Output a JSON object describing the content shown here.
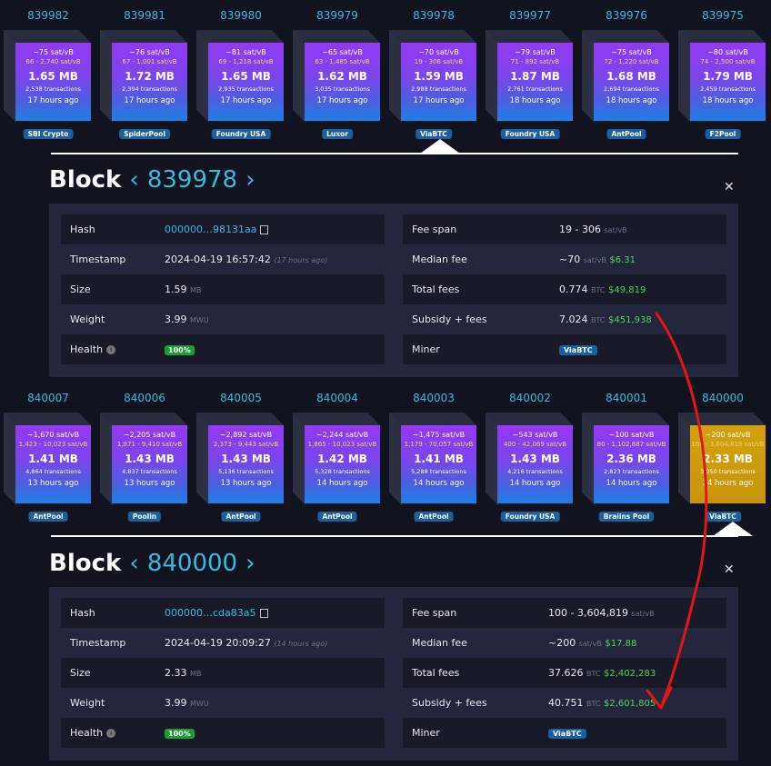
{
  "sections": [
    {
      "blocks": [
        {
          "height": "839982",
          "fee": "~75 sat/vB",
          "range": "66 - 2,740 sat/vB",
          "size": "1.65 MB",
          "tx": "2,538 transactions",
          "age": "17 hours ago",
          "pool": "SBI Crypto"
        },
        {
          "height": "839981",
          "fee": "~76 sat/vB",
          "range": "67 - 1,001 sat/vB",
          "size": "1.72 MB",
          "tx": "2,394 transactions",
          "age": "17 hours ago",
          "pool": "SpiderPool"
        },
        {
          "height": "839980",
          "fee": "~81 sat/vB",
          "range": "69 - 1,218 sat/vB",
          "size": "1.65 MB",
          "tx": "2,935 transactions",
          "age": "17 hours ago",
          "pool": "Foundry USA"
        },
        {
          "height": "839979",
          "fee": "~65 sat/vB",
          "range": "63 - 1,485 sat/vB",
          "size": "1.62 MB",
          "tx": "3,035 transactions",
          "age": "17 hours ago",
          "pool": "Luxor"
        },
        {
          "height": "839978",
          "fee": "~70 sat/vB",
          "range": "19 - 306 sat/vB",
          "size": "1.59 MB",
          "tx": "2,988 transactions",
          "age": "17 hours ago",
          "pool": "ViaBTC"
        },
        {
          "height": "839977",
          "fee": "~79 sat/vB",
          "range": "71 - 892 sat/vB",
          "size": "1.87 MB",
          "tx": "2,761 transactions",
          "age": "18 hours ago",
          "pool": "Foundry USA"
        },
        {
          "height": "839976",
          "fee": "~75 sat/vB",
          "range": "72 - 1,220 sat/vB",
          "size": "1.68 MB",
          "tx": "2,694 transactions",
          "age": "18 hours ago",
          "pool": "AntPool"
        },
        {
          "height": "839975",
          "fee": "~80 sat/vB",
          "range": "74 - 2,500 sat/vB",
          "size": "1.79 MB",
          "tx": "2,459 transactions",
          "age": "18 hours ago",
          "pool": "F2Pool"
        }
      ],
      "detail": {
        "title": "Block",
        "arrow_left": "‹",
        "arrow_right": "›",
        "height": "839978",
        "close": "✕",
        "hash_label": "Hash",
        "hash": "000000…98131aa",
        "timestamp_label": "Timestamp",
        "timestamp": "2024-04-19 16:57:42",
        "timestamp_ago": "(17 hours ago)",
        "size_label": "Size",
        "size": "1.59",
        "size_unit": "MB",
        "weight_label": "Weight",
        "weight": "3.99",
        "weight_unit": "MWU",
        "health_label": "Health",
        "health": "100%",
        "feespan_label": "Fee span",
        "feespan": "19 - 306",
        "feespan_unit": "sat/vB",
        "median_label": "Median fee",
        "median": "~70",
        "median_unit": "sat/vB",
        "median_fiat": "$6.31",
        "total_label": "Total fees",
        "total": "0.774",
        "total_unit": "BTC",
        "total_fiat": "$49,819",
        "subsidy_label": "Subsidy + fees",
        "subsidy": "7.024",
        "subsidy_unit": "BTC",
        "subsidy_fiat": "$451,938",
        "miner_label": "Miner",
        "miner": "ViaBTC"
      }
    },
    {
      "blocks": [
        {
          "height": "840007",
          "fee": "~1,670 sat/vB",
          "range": "1,423 - 10,023 sat/vB",
          "size": "1.41 MB",
          "tx": "4,864 transactions",
          "age": "13 hours ago",
          "pool": "AntPool"
        },
        {
          "height": "840006",
          "fee": "~2,205 sat/vB",
          "range": "1,871 - 9,410 sat/vB",
          "size": "1.43 MB",
          "tx": "4,837 transactions",
          "age": "13 hours ago",
          "pool": "Poolin"
        },
        {
          "height": "840005",
          "fee": "~2,892 sat/vB",
          "range": "2,373 - 9,443 sat/vB",
          "size": "1.43 MB",
          "tx": "5,136 transactions",
          "age": "13 hours ago",
          "pool": "AntPool"
        },
        {
          "height": "840004",
          "fee": "~2,244 sat/vB",
          "range": "1,865 - 10,023 sat/vB",
          "size": "1.42 MB",
          "tx": "5,328 transactions",
          "age": "14 hours ago",
          "pool": "AntPool"
        },
        {
          "height": "840003",
          "fee": "~1,475 sat/vB",
          "range": "1,179 - 70,057 sat/vB",
          "size": "1.41 MB",
          "tx": "5,288 transactions",
          "age": "14 hours ago",
          "pool": "AntPool"
        },
        {
          "height": "840002",
          "fee": "~543 sat/vB",
          "range": "400 - 42,069 sat/vB",
          "size": "1.43 MB",
          "tx": "4,216 transactions",
          "age": "14 hours ago",
          "pool": "Foundry USA"
        },
        {
          "height": "840001",
          "fee": "~100 sat/vB",
          "range": "80 - 1,102,887 sat/vB",
          "size": "2.36 MB",
          "tx": "2,823 transactions",
          "age": "14 hours ago",
          "pool": "Braiins Pool"
        },
        {
          "height": "840000",
          "fee": "~200 sat/vB",
          "range": "100 - 3,604,819 sat/vB",
          "size": "2.33 MB",
          "tx": "3,050 transactions",
          "age": "14 hours ago",
          "pool": "ViaBTC",
          "gold": true
        }
      ],
      "detail": {
        "title": "Block",
        "arrow_left": "‹",
        "arrow_right": "›",
        "height": "840000",
        "close": "✕",
        "hash_label": "Hash",
        "hash": "000000…cda83a5",
        "timestamp_label": "Timestamp",
        "timestamp": "2024-04-19 20:09:27",
        "timestamp_ago": "(14 hours ago)",
        "size_label": "Size",
        "size": "2.33",
        "size_unit": "MB",
        "weight_label": "Weight",
        "weight": "3.99",
        "weight_unit": "MWU",
        "health_label": "Health",
        "health": "100%",
        "feespan_label": "Fee span",
        "feespan": "100 - 3,604,819",
        "feespan_unit": "sat/vB",
        "median_label": "Median fee",
        "median": "~200",
        "median_unit": "sat/vB",
        "median_fiat": "$17.88",
        "total_label": "Total fees",
        "total": "37.626",
        "total_unit": "BTC",
        "total_fiat": "$2,402,283",
        "subsidy_label": "Subsidy + fees",
        "subsidy": "40.751",
        "subsidy_unit": "BTC",
        "subsidy_fiat": "$2,601,805",
        "miner_label": "Miner",
        "miner": "ViaBTC"
      }
    }
  ],
  "colors": {
    "accent": "#3ab8de",
    "fiat": "#4fd35c",
    "annotation": "#e0161a",
    "selected_block": "#d3a10d"
  }
}
